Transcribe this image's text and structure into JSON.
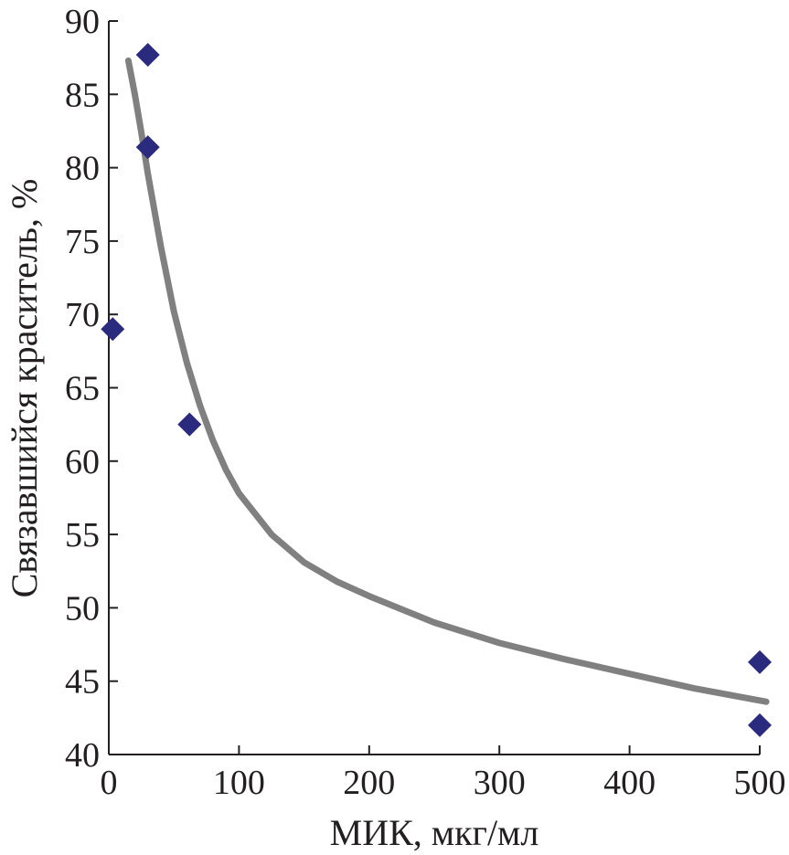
{
  "chart_data": {
    "type": "scatter",
    "title": "",
    "xlabel": "МИК, мкг/мл",
    "ylabel": "Связавшийся краситель, %",
    "xlim": [
      0,
      500
    ],
    "ylim": [
      40,
      90
    ],
    "xticks": [
      0,
      100,
      200,
      300,
      400,
      500
    ],
    "yticks": [
      40,
      45,
      50,
      55,
      60,
      65,
      70,
      75,
      80,
      85,
      90
    ],
    "grid": false,
    "legend": "none",
    "series": [
      {
        "kind": "points",
        "marker": "diamond",
        "color": "#2a2a7e",
        "points": [
          {
            "x": 3,
            "y": 69.0
          },
          {
            "x": 30,
            "y": 87.7
          },
          {
            "x": 30,
            "y": 81.4
          },
          {
            "x": 62,
            "y": 62.5
          },
          {
            "x": 500,
            "y": 46.3
          },
          {
            "x": 500,
            "y": 42.0
          }
        ]
      },
      {
        "kind": "trendline",
        "color": "#808080",
        "points": [
          {
            "x": 15,
            "y": 87.3
          },
          {
            "x": 20,
            "y": 85.0
          },
          {
            "x": 25,
            "y": 82.4
          },
          {
            "x": 30,
            "y": 79.6
          },
          {
            "x": 40,
            "y": 74.6
          },
          {
            "x": 50,
            "y": 70.2
          },
          {
            "x": 60,
            "y": 66.7
          },
          {
            "x": 70,
            "y": 63.8
          },
          {
            "x": 80,
            "y": 61.4
          },
          {
            "x": 90,
            "y": 59.4
          },
          {
            "x": 100,
            "y": 57.8
          },
          {
            "x": 125,
            "y": 55.0
          },
          {
            "x": 150,
            "y": 53.1
          },
          {
            "x": 175,
            "y": 51.8
          },
          {
            "x": 200,
            "y": 50.8
          },
          {
            "x": 250,
            "y": 49.0
          },
          {
            "x": 300,
            "y": 47.6
          },
          {
            "x": 350,
            "y": 46.5
          },
          {
            "x": 400,
            "y": 45.5
          },
          {
            "x": 450,
            "y": 44.5
          },
          {
            "x": 505,
            "y": 43.6
          }
        ]
      }
    ]
  }
}
